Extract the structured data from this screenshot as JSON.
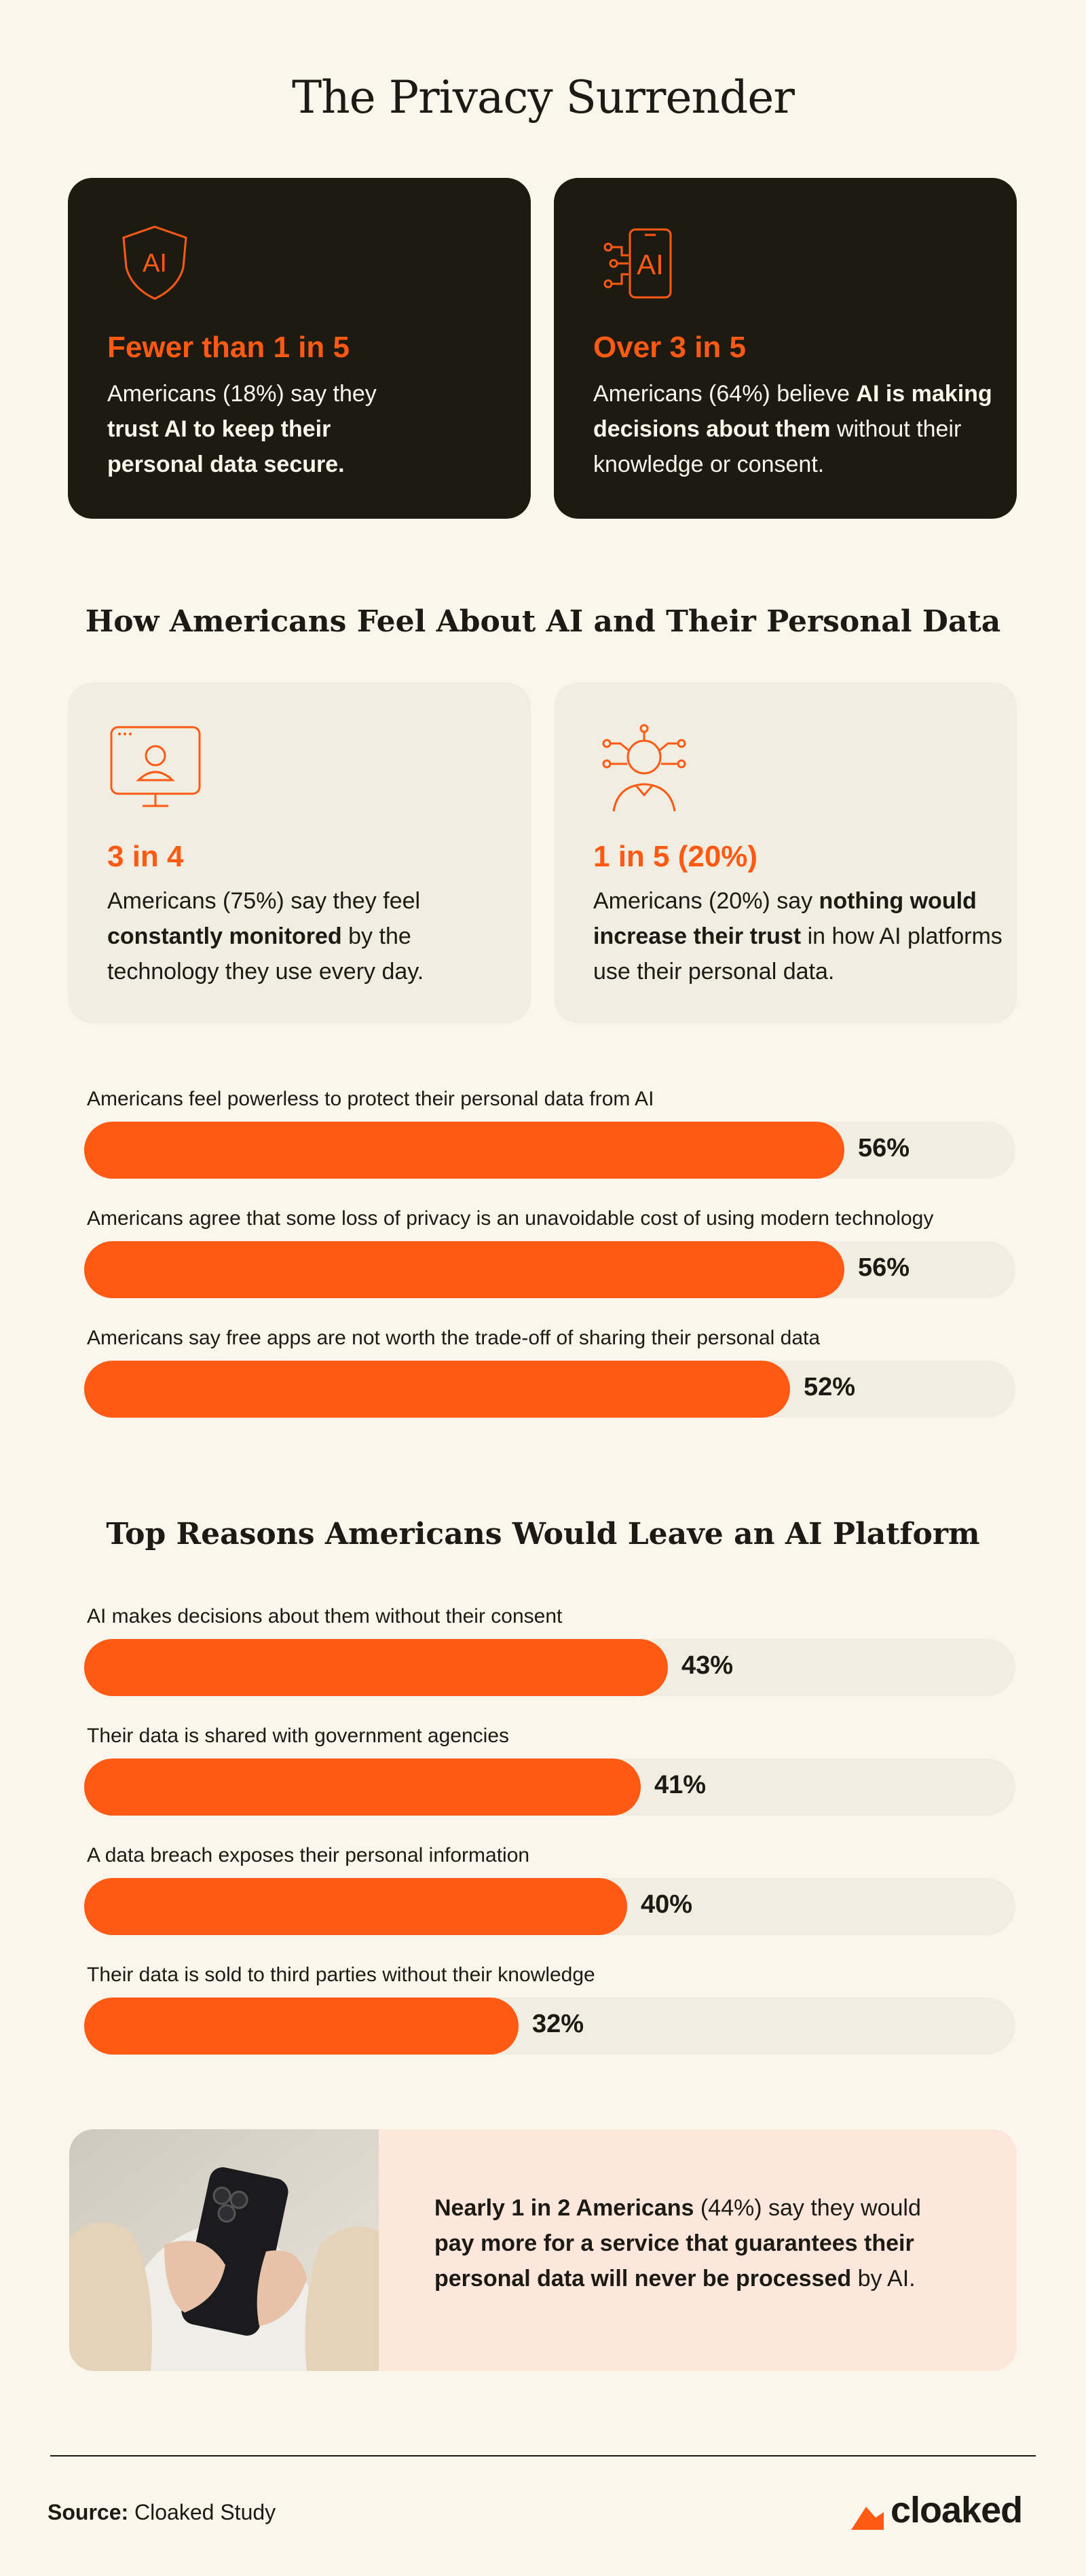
{
  "title": "The Privacy Surrender",
  "stat_cards": [
    {
      "icon": "ai-shield-icon",
      "icon_text": "AI",
      "headline": "Fewer than 1 in 5",
      "body_plain_1": "Americans (18%) say they ",
      "body_bold_1": "trust AI to keep their personal data secure.",
      "body_plain_2": ""
    },
    {
      "icon": "ai-chip-icon",
      "icon_text": "AI",
      "headline": "Over 3 in 5",
      "body_plain_1": "Americans (64%) believe ",
      "body_bold_1": "AI is making decisions about them",
      "body_plain_2": " without their knowledge or consent."
    }
  ],
  "section1_title": "How Americans Feel About AI and Their Personal Data",
  "feel_cards": [
    {
      "icon": "monitor-user-icon",
      "headline": "3 in 4",
      "body_plain_1": "Americans (75%) say they feel ",
      "body_bold_1": "constantly monitored",
      "body_plain_2": " by the technology they use every day."
    },
    {
      "icon": "network-person-icon",
      "headline": "1 in 5 (20%)",
      "body_plain_1": "Americans (20%) say ",
      "body_bold_1": "nothing would increase their trust",
      "body_plain_2": " in how AI platforms use their personal data."
    }
  ],
  "feel_bars": [
    {
      "label": "Americans feel powerless to protect their personal data from AI",
      "value": 56,
      "pct_text": "56%"
    },
    {
      "label": "Americans agree that some loss of privacy is an unavoidable cost of using modern technology",
      "value": 56,
      "pct_text": "56%"
    },
    {
      "label": "Americans say free apps are not worth the trade-off of sharing their personal data",
      "value": 52,
      "pct_text": "52%"
    }
  ],
  "section2_title": "Top Reasons Americans Would Leave an AI Platform",
  "leave_bars": [
    {
      "label": "AI makes decisions about them without their consent",
      "value": 43,
      "pct_text": "43%"
    },
    {
      "label": "Their data is shared with government agencies",
      "value": 41,
      "pct_text": "41%"
    },
    {
      "label": "A data breach exposes their personal information",
      "value": 40,
      "pct_text": "40%"
    },
    {
      "label": "Their data is sold to third parties without their knowledge",
      "value": 32,
      "pct_text": "32%"
    }
  ],
  "promo": {
    "bold_1": "Nearly 1 in 2 Americans",
    "plain_1": " (44%) say they would ",
    "bold_2": "pay more for a service that guarantees their personal data will never be processed",
    "plain_2": " by AI."
  },
  "footer": {
    "source_label": "Source:",
    "source_value": " Cloaked Study",
    "logo_text": "cloaked"
  },
  "colors": {
    "accent": "#FF5A14",
    "dark": "#1D1A11",
    "background": "#FAF6EB",
    "track": "#F2EDE1",
    "promo_bg": "#FDE7DC"
  }
}
